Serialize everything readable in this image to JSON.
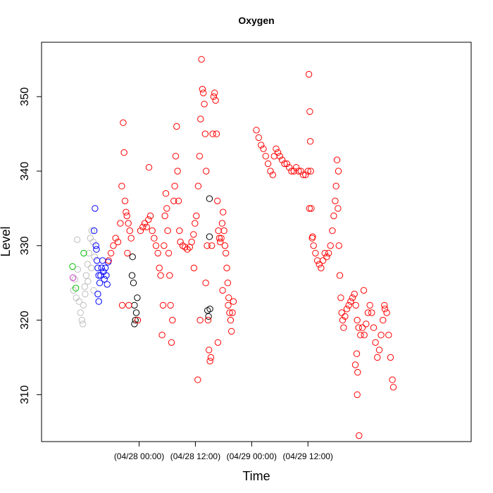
{
  "chart_data": {
    "type": "scatter",
    "title": "Oxygen",
    "xlabel": "Time",
    "ylabel": "Level",
    "x_unit": "hours since first x tick",
    "xlim": [
      -20.8,
      70.8
    ],
    "ylim": [
      303.7,
      357.3
    ],
    "x_ticks": [
      {
        "value": 0,
        "label": "(04/28 00:00)"
      },
      {
        "value": 12,
        "label": "(04/28 12:00)"
      },
      {
        "value": 24,
        "label": "(04/29 00:00)"
      },
      {
        "value": 36,
        "label": "(04/29 12:00)"
      }
    ],
    "y_ticks": [
      310,
      320,
      330,
      340,
      350
    ],
    "grid": false,
    "legend": "none",
    "marker": "open-circle",
    "series": [
      {
        "color": "#bebebe",
        "points": [
          [
            -14.0,
            324.0
          ],
          [
            -13.7,
            325.5
          ],
          [
            -13.4,
            323.0
          ],
          [
            -13.1,
            326.8
          ],
          [
            -12.8,
            322.5
          ],
          [
            -12.5,
            321.0
          ],
          [
            -12.2,
            320.0
          ],
          [
            -11.9,
            322.0
          ],
          [
            -11.6,
            324.5
          ],
          [
            -11.3,
            326.0
          ],
          [
            -11.0,
            327.5
          ],
          [
            -10.7,
            329.0
          ],
          [
            -10.4,
            331.0
          ],
          [
            -10.1,
            332.0
          ],
          [
            -9.8,
            330.5
          ],
          [
            -9.5,
            328.5
          ],
          [
            -13.2,
            330.8
          ],
          [
            -12.0,
            319.5
          ],
          [
            -11.5,
            323.5
          ],
          [
            -10.9,
            325.2
          ],
          [
            -10.2,
            327.0
          ],
          [
            -9.7,
            324.0
          ]
        ]
      },
      {
        "color": "#00c000",
        "points": [
          [
            -14.2,
            327.2
          ],
          [
            -11.8,
            329.0
          ],
          [
            -13.5,
            324.3
          ]
        ]
      },
      {
        "color": "#cc33cc",
        "points": [
          [
            -14.1,
            325.7
          ]
        ]
      },
      {
        "color": "#0000ff",
        "points": [
          [
            -9.6,
            332.0
          ],
          [
            -9.4,
            335.0
          ],
          [
            -9.2,
            330.0
          ],
          [
            -9.0,
            328.0
          ],
          [
            -8.8,
            327.0
          ],
          [
            -8.6,
            326.0
          ],
          [
            -8.4,
            325.0
          ],
          [
            -8.2,
            326.0
          ],
          [
            -8.0,
            327.0
          ],
          [
            -7.8,
            328.0
          ],
          [
            -7.6,
            326.5
          ],
          [
            -7.4,
            325.5
          ],
          [
            -7.2,
            327.0
          ],
          [
            -7.0,
            326.0
          ],
          [
            -6.8,
            324.8
          ],
          [
            -8.6,
            322.5
          ],
          [
            -8.8,
            323.5
          ],
          [
            -9.1,
            329.5
          ],
          [
            -6.6,
            327.8
          ]
        ]
      },
      {
        "color": "#000000",
        "points": [
          [
            -1.4,
            328.5
          ],
          [
            -1.2,
            325.0
          ],
          [
            -1.0,
            322.0
          ],
          [
            -0.8,
            320.0
          ],
          [
            -0.6,
            321.0
          ],
          [
            -0.4,
            323.0
          ],
          [
            -1.5,
            326.0
          ],
          [
            -1.0,
            319.5
          ],
          [
            15.0,
            336.3
          ],
          [
            15.0,
            331.2
          ],
          [
            15.1,
            321.5
          ],
          [
            14.8,
            320.5
          ],
          [
            14.6,
            321.3
          ]
        ]
      },
      {
        "color": "#ff0000",
        "points": [
          [
            -6.5,
            328.0
          ],
          [
            -6.0,
            329.0
          ],
          [
            -5.5,
            330.0
          ],
          [
            -5.0,
            331.0
          ],
          [
            -4.5,
            330.5
          ],
          [
            -4.0,
            333.0
          ],
          [
            -3.7,
            338.0
          ],
          [
            -3.4,
            346.5
          ],
          [
            -3.2,
            342.5
          ],
          [
            -3.0,
            336.0
          ],
          [
            -2.8,
            334.5
          ],
          [
            -2.6,
            334.0
          ],
          [
            -2.3,
            333.0
          ],
          [
            -2.0,
            332.0
          ],
          [
            -1.7,
            331.0
          ],
          [
            -2.5,
            329.0
          ],
          [
            -2.2,
            322.0
          ],
          [
            -3.6,
            322.0
          ],
          [
            -0.3,
            320.0
          ],
          [
            0.3,
            332.0
          ],
          [
            0.8,
            332.5
          ],
          [
            1.2,
            333.0
          ],
          [
            1.6,
            332.5
          ],
          [
            2.0,
            333.5
          ],
          [
            2.4,
            334.0
          ],
          [
            2.8,
            332.0
          ],
          [
            3.2,
            331.0
          ],
          [
            3.6,
            330.0
          ],
          [
            4.0,
            329.0
          ],
          [
            4.3,
            327.0
          ],
          [
            4.6,
            326.0
          ],
          [
            2.1,
            340.5
          ],
          [
            4.9,
            318.0
          ],
          [
            5.1,
            322.0
          ],
          [
            5.3,
            330.0
          ],
          [
            5.5,
            334.0
          ],
          [
            5.7,
            337.0
          ],
          [
            5.9,
            335.0
          ],
          [
            6.1,
            332.0
          ],
          [
            6.3,
            329.0
          ],
          [
            6.5,
            326.0
          ],
          [
            6.7,
            322.0
          ],
          [
            6.9,
            317.0
          ],
          [
            7.1,
            320.0
          ],
          [
            7.4,
            336.0
          ],
          [
            7.6,
            338.0
          ],
          [
            7.8,
            342.0
          ],
          [
            8.0,
            346.0
          ],
          [
            8.2,
            340.0
          ],
          [
            8.4,
            336.0
          ],
          [
            8.6,
            332.0
          ],
          [
            8.8,
            330.5
          ],
          [
            9.3,
            330.0
          ],
          [
            9.8,
            329.8
          ],
          [
            10.3,
            329.5
          ],
          [
            10.8,
            329.8
          ],
          [
            11.2,
            330.5
          ],
          [
            11.6,
            331.5
          ],
          [
            11.9,
            333.0
          ],
          [
            12.2,
            334.0
          ],
          [
            12.6,
            338.0
          ],
          [
            12.9,
            342.0
          ],
          [
            13.1,
            347.0
          ],
          [
            13.3,
            355.0
          ],
          [
            13.5,
            351.0
          ],
          [
            13.7,
            350.5
          ],
          [
            13.9,
            349.0
          ],
          [
            14.1,
            345.0
          ],
          [
            14.3,
            340.0
          ],
          [
            14.5,
            330.0
          ],
          [
            14.7,
            320.0
          ],
          [
            14.9,
            316.0
          ],
          [
            15.1,
            314.5
          ],
          [
            15.3,
            315.0
          ],
          [
            15.5,
            330.0
          ],
          [
            15.7,
            345.0
          ],
          [
            15.9,
            350.0
          ],
          [
            16.1,
            350.5
          ],
          [
            16.3,
            349.5
          ],
          [
            16.5,
            345.0
          ],
          [
            16.7,
            336.0
          ],
          [
            16.9,
            332.0
          ],
          [
            17.1,
            331.0
          ],
          [
            17.3,
            330.5
          ],
          [
            17.5,
            331.0
          ],
          [
            17.7,
            333.0
          ],
          [
            17.9,
            334.5
          ],
          [
            18.1,
            332.0
          ],
          [
            18.3,
            330.0
          ],
          [
            18.5,
            329.0
          ],
          [
            18.7,
            327.0
          ],
          [
            18.9,
            325.0
          ],
          [
            19.1,
            323.0
          ],
          [
            19.3,
            321.0
          ],
          [
            19.5,
            320.0
          ],
          [
            19.7,
            318.5
          ],
          [
            19.9,
            321.0
          ],
          [
            20.1,
            322.5
          ],
          [
            14.2,
            325.0
          ],
          [
            13.0,
            320.0
          ],
          [
            12.5,
            312.0
          ],
          [
            11.7,
            327.0
          ],
          [
            16.8,
            317.0
          ],
          [
            17.8,
            324.0
          ],
          [
            19.0,
            322.0
          ],
          [
            25.0,
            345.5
          ],
          [
            25.5,
            344.5
          ],
          [
            26.0,
            343.5
          ],
          [
            26.5,
            343.0
          ],
          [
            27.0,
            342.0
          ],
          [
            27.5,
            341.0
          ],
          [
            28.0,
            340.0
          ],
          [
            28.5,
            339.5
          ],
          [
            28.8,
            342.0
          ],
          [
            29.2,
            343.0
          ],
          [
            29.6,
            342.5
          ],
          [
            30.0,
            342.0
          ],
          [
            30.5,
            341.5
          ],
          [
            31.0,
            341.0
          ],
          [
            31.5,
            341.0
          ],
          [
            32.0,
            340.5
          ],
          [
            32.5,
            340.0
          ],
          [
            33.0,
            340.0
          ],
          [
            33.5,
            340.5
          ],
          [
            34.0,
            340.0
          ],
          [
            34.5,
            340.0
          ],
          [
            35.0,
            339.5
          ],
          [
            35.5,
            339.5
          ],
          [
            36.0,
            340.0
          ],
          [
            36.2,
            353.0
          ],
          [
            36.4,
            348.0
          ],
          [
            36.5,
            344.0
          ],
          [
            36.6,
            340.0
          ],
          [
            36.7,
            335.0
          ],
          [
            36.9,
            331.0
          ],
          [
            37.2,
            330.0
          ],
          [
            37.6,
            329.0
          ],
          [
            38.0,
            328.0
          ],
          [
            38.4,
            327.5
          ],
          [
            38.8,
            327.0
          ],
          [
            39.2,
            328.0
          ],
          [
            39.6,
            329.0
          ],
          [
            40.0,
            328.5
          ],
          [
            40.4,
            329.0
          ],
          [
            40.8,
            330.0
          ],
          [
            41.2,
            332.0
          ],
          [
            41.5,
            334.0
          ],
          [
            41.8,
            336.0
          ],
          [
            42.0,
            338.0
          ],
          [
            42.2,
            341.5
          ],
          [
            42.4,
            335.0
          ],
          [
            42.6,
            330.0
          ],
          [
            42.8,
            326.0
          ],
          [
            43.0,
            323.0
          ],
          [
            43.2,
            321.0
          ],
          [
            43.4,
            320.0
          ],
          [
            43.6,
            319.0
          ],
          [
            43.9,
            320.5
          ],
          [
            44.3,
            321.5
          ],
          [
            44.7,
            322.0
          ],
          [
            45.1,
            322.5
          ],
          [
            45.5,
            323.0
          ],
          [
            45.9,
            323.5
          ],
          [
            46.2,
            322.0
          ],
          [
            46.5,
            320.0
          ],
          [
            46.8,
            319.0
          ],
          [
            46.6,
            313.0
          ],
          [
            46.5,
            310.0
          ],
          [
            46.9,
            304.5
          ],
          [
            47.2,
            318.0
          ],
          [
            47.6,
            319.0
          ],
          [
            48.0,
            318.0
          ],
          [
            48.4,
            319.5
          ],
          [
            48.8,
            321.0
          ],
          [
            49.2,
            322.0
          ],
          [
            49.6,
            321.0
          ],
          [
            50.0,
            319.0
          ],
          [
            50.4,
            317.0
          ],
          [
            50.8,
            315.0
          ],
          [
            51.2,
            316.0
          ],
          [
            51.6,
            318.0
          ],
          [
            52.0,
            320.0
          ],
          [
            52.4,
            321.5
          ],
          [
            52.8,
            321.0
          ],
          [
            53.2,
            318.0
          ],
          [
            53.6,
            315.0
          ],
          [
            54.0,
            312.0
          ],
          [
            54.2,
            311.0
          ],
          [
            47.9,
            324.0
          ],
          [
            46.4,
            315.5
          ],
          [
            42.5,
            340.0
          ],
          [
            36.3,
            335.0
          ],
          [
            37.0,
            331.2
          ],
          [
            46.1,
            314.0
          ],
          [
            52.3,
            322.0
          ]
        ]
      }
    ]
  }
}
